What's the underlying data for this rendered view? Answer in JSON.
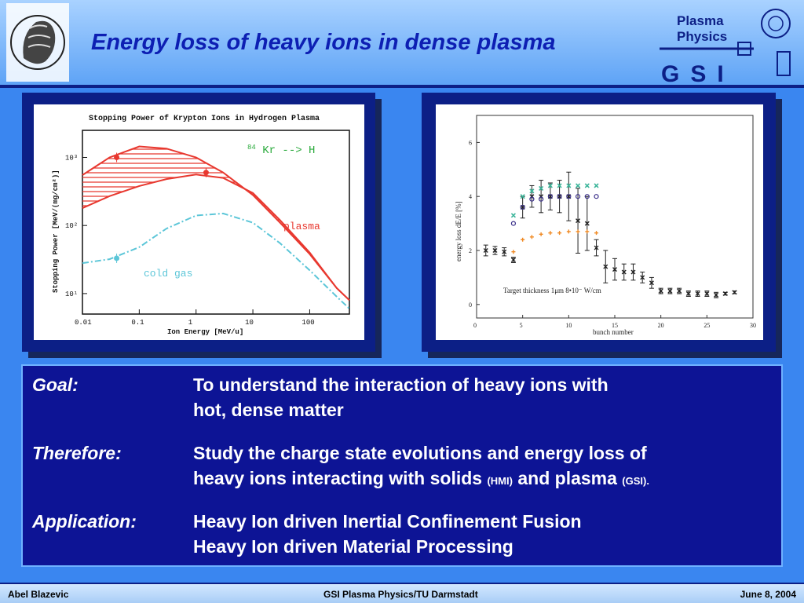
{
  "slide": {
    "title": "Energy loss of heavy ions in dense plasma",
    "logo": {
      "line1": "Plasma",
      "line2": "Physics",
      "org": "GSI"
    }
  },
  "figure_left": {
    "title": "Stopping Power of Krypton Ions in Hydrogen Plasma",
    "reaction": "84Kr --> H",
    "reaction_mass": "84",
    "reaction_rest": "Kr --> H",
    "ylabel": "Stopping Power   [MeV/(mg/cm²)]",
    "xlabel": "Ion Energy   [MeV/u]",
    "curve_label_plasma": "plasma",
    "curve_label_cold": "cold gas",
    "colors": {
      "plasma": "#e8382f",
      "cold": "#5cc6d8",
      "reaction": "#2cab3e"
    }
  },
  "figure_right": {
    "ylabel": "energy loss dE/E [%]",
    "xlabel": "bunch number",
    "annotation": "Target thickness 1μm  8•10⁻ W/cm"
  },
  "chart_data": [
    {
      "type": "line",
      "title": "Stopping Power of Krypton Ions in Hydrogen Plasma",
      "xlabel": "Ion Energy [MeV/u]",
      "ylabel": "Stopping Power [MeV/(mg/cm²)]",
      "xscale": "log",
      "yscale": "log",
      "xlim": [
        0.01,
        500
      ],
      "ylim": [
        5,
        2500
      ],
      "x_ticks": [
        "0.01",
        "0.1",
        "1",
        "10",
        "100"
      ],
      "y_ticks": [
        "10³",
        "10²",
        "10¹"
      ],
      "series": [
        {
          "name": "plasma",
          "x": [
            0.01,
            0.03,
            0.1,
            0.3,
            1,
            3,
            10,
            30,
            100,
            300,
            500
          ],
          "y": [
            550,
            1000,
            1450,
            1350,
            1000,
            600,
            280,
            110,
            38,
            12,
            8
          ]
        },
        {
          "name": "plasma",
          "x": [
            0.01,
            0.03,
            0.1,
            0.3,
            1,
            3,
            10,
            30,
            100,
            300,
            500
          ],
          "y": [
            180,
            270,
            380,
            480,
            560,
            500,
            300,
            120,
            40,
            12,
            8
          ]
        },
        {
          "name": "cold gas",
          "x": [
            0.01,
            0.03,
            0.1,
            0.3,
            1,
            3,
            10,
            30,
            100,
            300,
            500
          ],
          "y": [
            28,
            32,
            48,
            90,
            140,
            150,
            110,
            55,
            22,
            9,
            6
          ]
        }
      ],
      "points": [
        {
          "x": 0.04,
          "y": 1000,
          "color": "#e8382f"
        },
        {
          "x": 1.5,
          "y": 600,
          "color": "#e8382f"
        },
        {
          "x": 0.04,
          "y": 33,
          "color": "#5cc6d8"
        }
      ]
    },
    {
      "type": "scatter",
      "xlabel": "bunch number",
      "ylabel": "energy loss dE/E [%]",
      "xlim": [
        0,
        30
      ],
      "ylim": [
        -0.5,
        7
      ],
      "x_ticks": [
        "0",
        "5",
        "10",
        "15",
        "20",
        "25",
        "30"
      ],
      "y_ticks": [
        "0",
        "2",
        "4",
        "6"
      ],
      "series": [
        {
          "name": "",
          "marker": "cross-errorbar",
          "color": "#222222",
          "x": [
            1,
            2,
            3,
            4,
            5,
            6,
            7,
            8,
            9,
            10,
            11,
            12,
            13,
            14,
            15,
            16,
            17,
            18,
            19,
            20,
            21,
            22,
            23,
            24,
            25,
            26,
            27,
            28
          ],
          "y": [
            2.0,
            2.0,
            1.95,
            1.65,
            3.6,
            4.0,
            4.0,
            4.0,
            4.0,
            4.0,
            3.1,
            3.0,
            2.1,
            1.4,
            1.3,
            1.2,
            1.2,
            1.0,
            0.8,
            0.5,
            0.5,
            0.5,
            0.4,
            0.4,
            0.4,
            0.35,
            0.4,
            0.45
          ],
          "err": [
            0.2,
            0.15,
            0.15,
            0.1,
            0.4,
            0.4,
            0.6,
            0.5,
            0.6,
            0.9,
            1.2,
            1.0,
            0.3,
            0.6,
            0.4,
            0.3,
            0.3,
            0.2,
            0.2,
            0.1,
            0.1,
            0.1,
            0.1,
            0.1,
            0.1,
            0.1,
            0.05,
            0.05
          ]
        },
        {
          "name": "",
          "marker": "circle",
          "color": "#3a2f8a",
          "x": [
            4,
            5,
            6,
            7,
            8,
            9,
            10,
            11,
            12,
            13
          ],
          "y": [
            3.0,
            3.6,
            3.9,
            3.9,
            4.0,
            4.0,
            4.0,
            4.0,
            4.0,
            4.0
          ]
        },
        {
          "name": "",
          "marker": "x",
          "color": "#3cb59a",
          "x": [
            4,
            5,
            6,
            7,
            8,
            9,
            10,
            11,
            12,
            13
          ],
          "y": [
            3.3,
            4.0,
            4.2,
            4.3,
            4.4,
            4.4,
            4.4,
            4.4,
            4.4,
            4.4
          ]
        },
        {
          "name": "",
          "marker": "plus",
          "color": "#f08a24",
          "x": [
            4,
            5,
            6,
            7,
            8,
            9,
            10,
            11,
            12,
            13
          ],
          "y": [
            1.95,
            2.4,
            2.5,
            2.6,
            2.65,
            2.65,
            2.7,
            2.7,
            2.7,
            2.65
          ]
        }
      ]
    }
  ],
  "content": {
    "rows": [
      {
        "label": "Goal:",
        "line1": "To understand the interaction of heavy ions with",
        "line2": "hot, dense matter"
      },
      {
        "label": "Therefore:",
        "line1": "Study the charge state evolutions and energy loss of",
        "line2_a": "heavy ions interacting with solids ",
        "line2_b": "(HMI)",
        "line2_c": " and plasma ",
        "line2_d": "(GSI)",
        "line2_e": "."
      },
      {
        "label": "Application:",
        "line1": "Heavy Ion driven Inertial Confinement Fusion",
        "line2": "Heavy Ion driven Material Processing"
      }
    ]
  },
  "footer": {
    "author": "Abel Blazevic",
    "center": "GSI Plasma Physics/TU Darmstadt",
    "date": "June 8,  2004"
  }
}
